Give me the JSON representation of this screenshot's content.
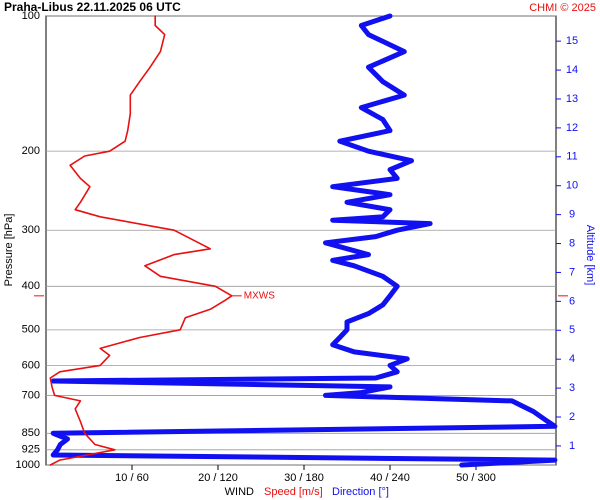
{
  "chart_data": {
    "type": "line",
    "title": "Praha-Libus   22.11.2025 06 UTC",
    "credit": "CHMI © 2025",
    "y_label": "Pressure [hPa]",
    "y2_label": "Altitude [km]",
    "x_label": "WIND",
    "x_label_speed": "Speed [m/s]",
    "x_label_direction": "Direction [°]",
    "y_scale": "log",
    "ylim": [
      1000,
      100
    ],
    "yticks": [
      100,
      200,
      300,
      400,
      500,
      600,
      700,
      850,
      925,
      1000
    ],
    "y2lim": [
      0.34,
      15.87
    ],
    "y2ticks": [
      1,
      2,
      3,
      4,
      5,
      6,
      7,
      8,
      9,
      10,
      11,
      12,
      13,
      14,
      15
    ],
    "xlim": [
      0,
      59.3
    ],
    "x2lim": [
      0,
      355.8
    ],
    "xticks": [
      {
        "value": 10,
        "label": "10 / 60"
      },
      {
        "value": 20,
        "label": "20 / 120"
      },
      {
        "value": 30,
        "label": "30 / 180"
      },
      {
        "value": 40,
        "label": "40 / 240"
      },
      {
        "value": 50,
        "label": "50 / 300"
      }
    ],
    "grid": true,
    "speed": {
      "name": "Speed [m/s]",
      "color": "#e81010",
      "y": [
        1000,
        975,
        925,
        900,
        850,
        800,
        750,
        720,
        700,
        670,
        640,
        620,
        600,
        570,
        550,
        520,
        500,
        470,
        450,
        430,
        420,
        400,
        380,
        360,
        340,
        330,
        300,
        280,
        270,
        260,
        240,
        230,
        215,
        205,
        200,
        190,
        180,
        165,
        150,
        140,
        130,
        120,
        110,
        105,
        100
      ],
      "values": [
        0.5,
        1.6,
        8.0,
        5.7,
        4.5,
        4.0,
        3.4,
        4.0,
        1.0,
        0.7,
        0.5,
        1.6,
        6.3,
        7.4,
        6.3,
        10.9,
        15.6,
        16.2,
        19.1,
        20.8,
        21.6,
        19.7,
        13.3,
        11.5,
        14.9,
        19.1,
        14.9,
        6.3,
        3.4,
        4.0,
        5.1,
        4.0,
        2.8,
        4.5,
        7.4,
        9.2,
        9.5,
        9.8,
        9.8,
        10.9,
        12.1,
        13.3,
        13.8,
        12.7,
        12.7
      ]
    },
    "direction": {
      "name": "Direction [°]",
      "color": "#1010f0",
      "y": [
        1000,
        975,
        950,
        925,
        900,
        875,
        850,
        820,
        800,
        760,
        720,
        700,
        690,
        670,
        650,
        640,
        620,
        600,
        580,
        560,
        540,
        520,
        500,
        480,
        460,
        440,
        420,
        400,
        380,
        360,
        350,
        340,
        320,
        310,
        300,
        290,
        285,
        280,
        270,
        260,
        250,
        240,
        230,
        220,
        210,
        200,
        190,
        180,
        170,
        160,
        150,
        140,
        130,
        120,
        110,
        105,
        100
      ],
      "values": [
        290,
        355,
        5,
        8,
        10,
        15,
        5,
        355,
        350,
        340,
        325,
        195,
        220,
        240,
        5,
        230,
        245,
        240,
        252,
        215,
        200,
        205,
        210,
        210,
        225,
        235,
        240,
        245,
        235,
        215,
        200,
        225,
        195,
        230,
        245,
        268,
        200,
        235,
        240,
        210,
        240,
        200,
        245,
        240,
        255,
        225,
        205,
        240,
        235,
        220,
        250,
        235,
        225,
        250,
        225,
        220,
        240
      ]
    },
    "mxws": {
      "label": "MXWS",
      "pressure": 420,
      "speed": 21.6
    }
  }
}
